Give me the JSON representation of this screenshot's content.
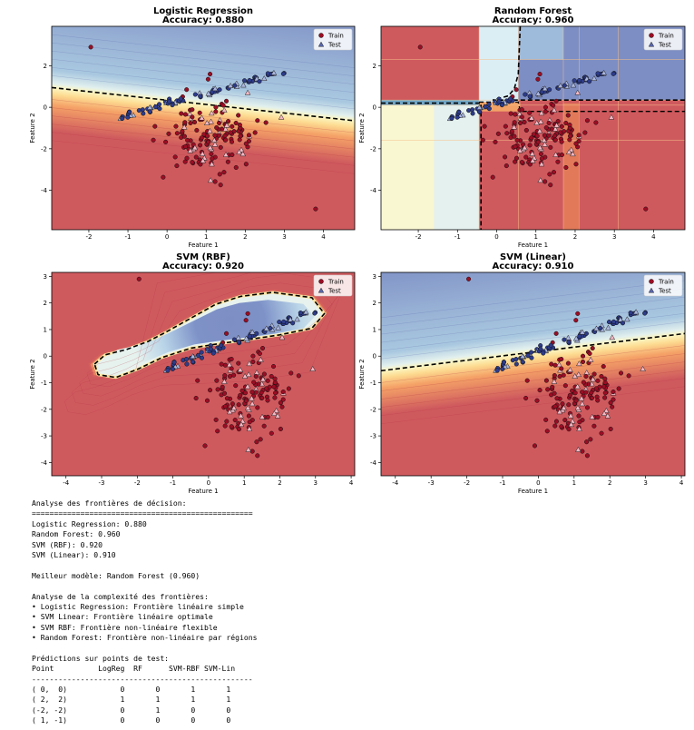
{
  "chart_data": [
    {
      "type": "scatter",
      "title": "Logistic Regression\nAccuracy: 0.880",
      "xlabel": "Feature 1",
      "ylabel": "Feature 2",
      "xlim": [
        -2.95,
        4.8
      ],
      "ylim": [
        -5.9,
        3.9
      ],
      "xticks": [
        -2,
        -1,
        0,
        1,
        2,
        3,
        4
      ],
      "yticks": [
        -4,
        -2,
        0,
        2
      ],
      "legend": [
        "Train",
        "Test"
      ],
      "legend_position": "top-right",
      "boundary": "linear",
      "boundary_line": [
        [
          -2.95,
          0.95
        ],
        [
          4.8,
          -0.65
        ]
      ]
    },
    {
      "type": "scatter",
      "title": "Random Forest\nAccuracy: 0.960",
      "xlabel": "Feature 1",
      "ylabel": "Feature 2",
      "xlim": [
        -2.95,
        4.8
      ],
      "ylim": [
        -5.9,
        3.9
      ],
      "xticks": [
        -2,
        -1,
        0,
        1,
        2,
        3,
        4
      ],
      "yticks": [
        -4,
        -2,
        0,
        2
      ],
      "legend": [
        "Train",
        "Test"
      ],
      "legend_position": "top-right",
      "boundary": "axis-aligned regions"
    },
    {
      "type": "scatter",
      "title": "SVM (RBF)\nAccuracy: 0.920",
      "xlabel": "Feature 1",
      "ylabel": "Feature 2",
      "xlim": [
        -4.4,
        4.1
      ],
      "ylim": [
        -4.5,
        3.15
      ],
      "xticks": [
        -4,
        -3,
        -2,
        -1,
        0,
        1,
        2,
        3,
        4
      ],
      "yticks": [
        -4,
        -3,
        -2,
        -1,
        0,
        1,
        2,
        3
      ],
      "legend": [
        "Train",
        "Test"
      ],
      "legend_position": "top-right",
      "boundary": "non-linear"
    },
    {
      "type": "scatter",
      "title": "SVM (Linear)\nAccuracy: 0.910",
      "xlabel": "Feature 1",
      "ylabel": "Feature 2",
      "xlim": [
        -4.4,
        4.1
      ],
      "ylim": [
        -4.5,
        3.15
      ],
      "xticks": [
        -4,
        -3,
        -2,
        -1,
        0,
        1,
        2,
        3,
        4
      ],
      "yticks": [
        -4,
        -3,
        -2,
        -1,
        0,
        1,
        2,
        3
      ],
      "legend": [
        "Train",
        "Test"
      ],
      "legend_position": "top-right",
      "boundary": "linear",
      "boundary_line": [
        [
          -4.4,
          -0.55
        ],
        [
          4.1,
          0.85
        ]
      ]
    }
  ],
  "colors": {
    "class0": "#9b0d24",
    "class1": "#2d3c8c",
    "test0": "#f4b7c3",
    "test1": "#aab6de",
    "bg_red": "#cf5a5e",
    "bg_blue": "#7d8ec4"
  },
  "console": {
    "lines": [
      "Analyse des frontières de décision:",
      "==================================================",
      "Logistic Regression: 0.880",
      "Random Forest: 0.960",
      "SVM (RBF): 0.920",
      "SVM (Linear): 0.910",
      "",
      "Meilleur modèle: Random Forest (0.960)",
      "",
      "Analyse de la complexité des frontières:",
      "• Logistic Regression: Frontière linéaire simple",
      "• SVM Linear: Frontière linéaire optimale",
      "• SVM RBF: Frontière non-linéaire flexible",
      "• Random Forest: Frontière non-linéaire par régions",
      "",
      "Prédictions sur points de test:",
      "Point          LogReg  RF      SVM-RBF SVM-Lin",
      "--------------------------------------------------",
      "( 0,  0)            0       0       1       1",
      "( 2,  2)            1       1       1       1",
      "(-2, -2)            0       1       0       0",
      "( 1, -1)            0       0       0       0"
    ]
  }
}
